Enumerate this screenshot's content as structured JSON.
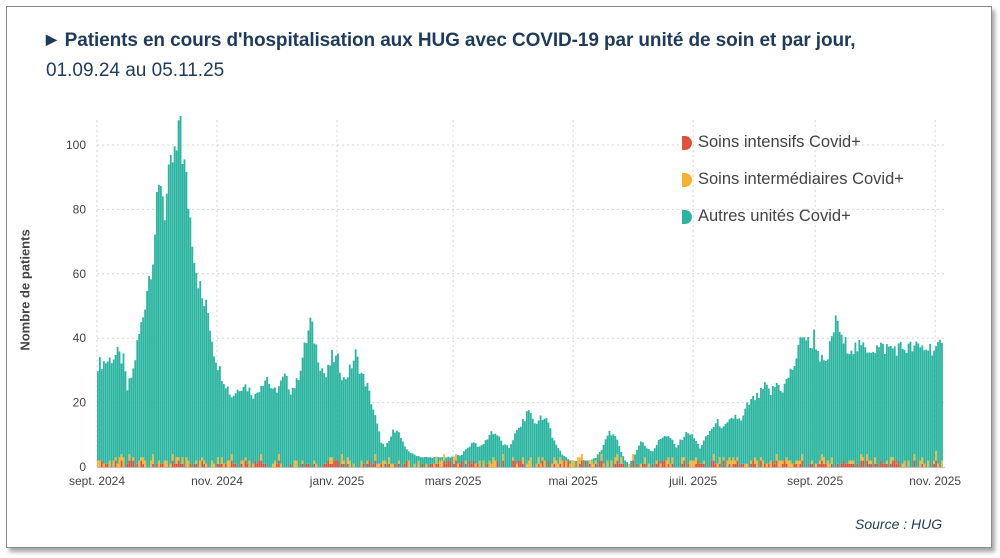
{
  "title": {
    "arrow": "▶",
    "line1": "Patients en cours d'hospitalisation aux HUG avec COVID-19 par unité de soin et par jour,",
    "line2": "01.09.24 au 05.11.25"
  },
  "source": "Source : HUG",
  "chart_data": {
    "type": "bar",
    "stacked": true,
    "ylabel": "Nombre de patients",
    "ylim": [
      0,
      110
    ],
    "yticks": [
      0,
      20,
      40,
      60,
      80,
      100
    ],
    "x_start": "2024-09-01",
    "x_end": "2025-11-05",
    "xticks": [
      {
        "label": "sept. 2024",
        "day": 0
      },
      {
        "label": "nov. 2024",
        "day": 61
      },
      {
        "label": "janv. 2025",
        "day": 122
      },
      {
        "label": "mars 2025",
        "day": 181
      },
      {
        "label": "mai 2025",
        "day": 242
      },
      {
        "label": "juil. 2025",
        "day": 303
      },
      {
        "label": "sept. 2025",
        "day": 365
      },
      {
        "label": "nov. 2025",
        "day": 426
      }
    ],
    "legend": [
      {
        "name": "Soins intensifs Covid+",
        "color": "#e0533a"
      },
      {
        "name": "Soins intermédiaires Covid+",
        "color": "#f5b331"
      },
      {
        "name": "Autres unités Covid+",
        "color": "#2bb5a0"
      }
    ],
    "series_daily_total_keypoints": [
      [
        0,
        32
      ],
      [
        5,
        33
      ],
      [
        10,
        35
      ],
      [
        13,
        33
      ],
      [
        15,
        24
      ],
      [
        18,
        30
      ],
      [
        20,
        38
      ],
      [
        23,
        47
      ],
      [
        25,
        56
      ],
      [
        28,
        66
      ],
      [
        30,
        80
      ],
      [
        32,
        90
      ],
      [
        34,
        80
      ],
      [
        36,
        88
      ],
      [
        38,
        95
      ],
      [
        40,
        97
      ],
      [
        42,
        106
      ],
      [
        43,
        98
      ],
      [
        45,
        88
      ],
      [
        48,
        72
      ],
      [
        50,
        62
      ],
      [
        53,
        52
      ],
      [
        56,
        48
      ],
      [
        59,
        36
      ],
      [
        62,
        30
      ],
      [
        65,
        26
      ],
      [
        68,
        22
      ],
      [
        71,
        24
      ],
      [
        74,
        26
      ],
      [
        77,
        24
      ],
      [
        80,
        22
      ],
      [
        83,
        26
      ],
      [
        86,
        28
      ],
      [
        89,
        23
      ],
      [
        92,
        25
      ],
      [
        95,
        28
      ],
      [
        98,
        24
      ],
      [
        101,
        26
      ],
      [
        104,
        34
      ],
      [
        107,
        42
      ],
      [
        108,
        45
      ],
      [
        110,
        40
      ],
      [
        113,
        32
      ],
      [
        116,
        28
      ],
      [
        119,
        34
      ],
      [
        122,
        33
      ],
      [
        125,
        27
      ],
      [
        128,
        30
      ],
      [
        131,
        35
      ],
      [
        134,
        29
      ],
      [
        137,
        25
      ],
      [
        140,
        18
      ],
      [
        142,
        13
      ],
      [
        144,
        8
      ],
      [
        146,
        6
      ],
      [
        148,
        8
      ],
      [
        150,
        11
      ],
      [
        152,
        12
      ],
      [
        154,
        9
      ],
      [
        156,
        6
      ],
      [
        158,
        5
      ],
      [
        160,
        4
      ],
      [
        165,
        3
      ],
      [
        170,
        3
      ],
      [
        175,
        3
      ],
      [
        180,
        3
      ],
      [
        185,
        4
      ],
      [
        188,
        6
      ],
      [
        191,
        8
      ],
      [
        194,
        6
      ],
      [
        197,
        8
      ],
      [
        200,
        11
      ],
      [
        203,
        10
      ],
      [
        206,
        7
      ],
      [
        209,
        6
      ],
      [
        212,
        10
      ],
      [
        215,
        13
      ],
      [
        217,
        15
      ],
      [
        219,
        18
      ],
      [
        221,
        15
      ],
      [
        223,
        13
      ],
      [
        225,
        16
      ],
      [
        227,
        15
      ],
      [
        229,
        14
      ],
      [
        231,
        9
      ],
      [
        233,
        7
      ],
      [
        236,
        4
      ],
      [
        240,
        2
      ],
      [
        245,
        2
      ],
      [
        250,
        2
      ],
      [
        253,
        3
      ],
      [
        256,
        5
      ],
      [
        258,
        9
      ],
      [
        260,
        11
      ],
      [
        262,
        10
      ],
      [
        264,
        8
      ],
      [
        266,
        5
      ],
      [
        268,
        2
      ],
      [
        270,
        1
      ],
      [
        273,
        4
      ],
      [
        276,
        8
      ],
      [
        279,
        6
      ],
      [
        282,
        5
      ],
      [
        285,
        8
      ],
      [
        288,
        10
      ],
      [
        291,
        9
      ],
      [
        294,
        6
      ],
      [
        297,
        9
      ],
      [
        300,
        11
      ],
      [
        303,
        9
      ],
      [
        306,
        6
      ],
      [
        309,
        9
      ],
      [
        312,
        12
      ],
      [
        315,
        14
      ],
      [
        318,
        12
      ],
      [
        321,
        14
      ],
      [
        324,
        16
      ],
      [
        327,
        14
      ],
      [
        330,
        19
      ],
      [
        333,
        21
      ],
      [
        336,
        22
      ],
      [
        339,
        25
      ],
      [
        342,
        23
      ],
      [
        345,
        26
      ],
      [
        348,
        24
      ],
      [
        351,
        28
      ],
      [
        354,
        32
      ],
      [
        356,
        36
      ],
      [
        358,
        42
      ],
      [
        360,
        40
      ],
      [
        362,
        37
      ],
      [
        364,
        41
      ],
      [
        366,
        36
      ],
      [
        368,
        33
      ],
      [
        370,
        31
      ],
      [
        372,
        37
      ],
      [
        374,
        43
      ],
      [
        376,
        46
      ],
      [
        378,
        39
      ],
      [
        380,
        38
      ],
      [
        384,
        37
      ]
    ],
    "note": "Small bottom segments in red (Soins intensifs, ~0-3) and orange (Soins intermédiaires, ~0-4); remainder green (Autres unités)."
  }
}
